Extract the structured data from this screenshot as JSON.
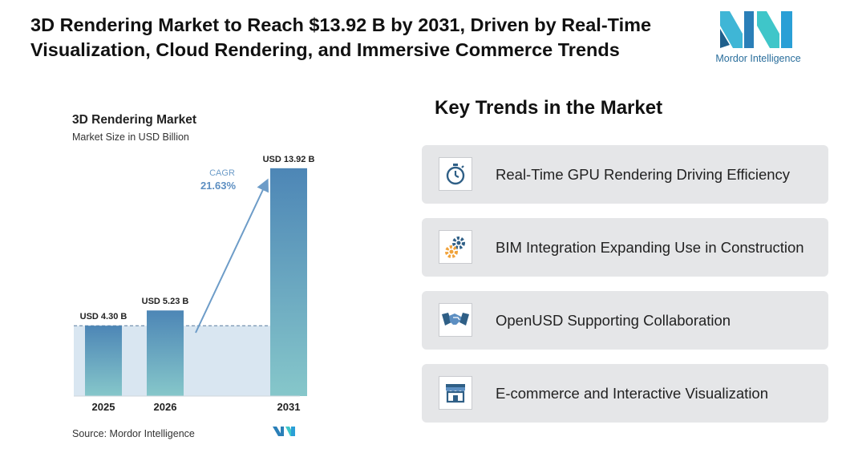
{
  "headline": "3D Rendering Market to Reach $13.92 B by 2031, Driven by Real-Time Visualization, Cloud Rendering, and Immersive Commerce Trends",
  "logo": {
    "text": "Mordor Intelligence",
    "colors": [
      "#2a9fd6",
      "#1f5f8b",
      "#3fc6c9"
    ]
  },
  "chart_data": {
    "type": "bar",
    "title": "3D Rendering Market",
    "subtitle": "Market Size in USD Billion",
    "categories": [
      "2025",
      "2026",
      "2031"
    ],
    "values": [
      4.3,
      5.23,
      13.92
    ],
    "data_labels": [
      "USD 4.30 B",
      "USD 5.23 B",
      "USD 13.92 B"
    ],
    "cagr_label": "CAGR",
    "cagr_value": "21.63%",
    "source": "Source: Mordor Intelligence",
    "ylim": [
      0,
      14.5
    ],
    "colors": {
      "bar_top": "#4d86b6",
      "bar_bottom": "#86c7ca",
      "band": "#d9e6f1",
      "arrow": "#6d9cc8"
    }
  },
  "trends": {
    "title": "Key Trends in the Market",
    "items": [
      {
        "label": "Real-Time GPU Rendering Driving Efficiency",
        "icon": "stopwatch-icon"
      },
      {
        "label": "BIM Integration Expanding Use in Construction",
        "icon": "gears-icon"
      },
      {
        "label": "OpenUSD Supporting Collaboration",
        "icon": "handshake-icon"
      },
      {
        "label": "E-commerce and Interactive Visualization",
        "icon": "storefront-icon"
      }
    ]
  }
}
